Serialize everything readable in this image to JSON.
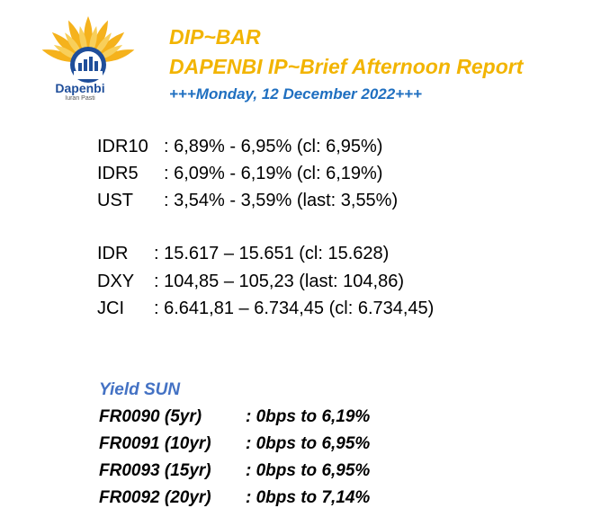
{
  "header": {
    "logo_name": "Dapenbi",
    "logo_tagline": "Iuran Pasti",
    "title": "DIP~BAR",
    "subtitle": "DAPENBI IP~Brief Afternoon Report",
    "date": "+++Monday, 12 December 2022+++"
  },
  "rates": [
    {
      "label": "IDR10",
      "value": ": 6,89% - 6,95% (cl: 6,95%)"
    },
    {
      "label": "IDR5",
      "value": ": 6,09% - 6,19% (cl: 6,19%)"
    },
    {
      "label": "UST",
      "value": ": 3,54% - 3,59% (last: 3,55%)"
    }
  ],
  "markets": [
    {
      "label": "IDR",
      "value": ": 15.617 – 15.651 (cl: 15.628)"
    },
    {
      "label": "DXY",
      "value": ": 104,85 – 105,23 (last: 104,86)"
    },
    {
      "label": "JCI",
      "value": ": 6.641,81 – 6.734,45 (cl: 6.734,45)"
    }
  ],
  "yield": {
    "heading": "Yield SUN",
    "items": [
      {
        "label": "FR0090 (5yr)",
        "value": ": 0bps to 6,19%"
      },
      {
        "label": "FR0091 (10yr)",
        "value": ": 0bps to 6,95%"
      },
      {
        "label": "FR0093 (15yr)",
        "value": ": 0bps to 6,95%"
      },
      {
        "label": "FR0092 (20yr)",
        "value": ": 0bps to 7,14%"
      }
    ]
  },
  "colors": {
    "title": "#f2b400",
    "date": "#1f6fc0",
    "yield_heading": "#4472c4",
    "logo_blue": "#1f4e9a"
  }
}
